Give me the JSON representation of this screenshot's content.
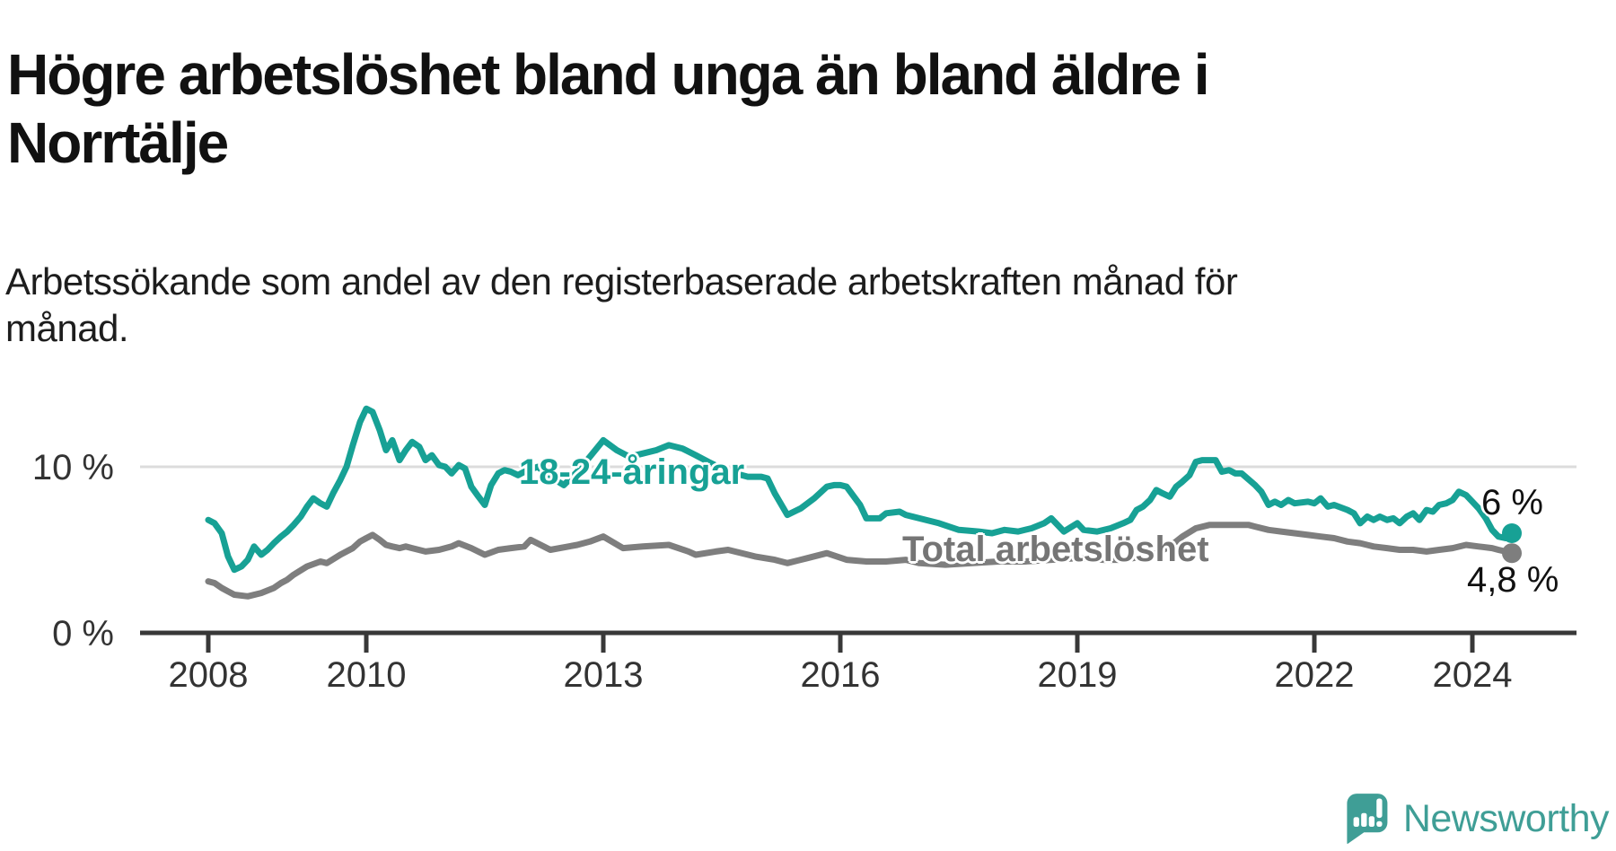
{
  "header": {
    "title": "Högre arbetslöshet bland unga än bland äldre i Norrtälje",
    "subtitle": "Arbetssökande som andel av den registerbaserade arbetskraften månad för månad."
  },
  "chart_data": {
    "type": "line",
    "unit": "%",
    "grid": "horizontal-10-only",
    "legend_position": "labels-on-lines",
    "x_ticks": [
      2008,
      2010,
      2013,
      2016,
      2019,
      2022,
      2024
    ],
    "y_ticks": [
      {
        "value": 10,
        "label": "10 %",
        "gridline": true
      },
      {
        "value": 0,
        "label": "0 %",
        "gridline": false
      }
    ],
    "x_range_years": [
      2007.1,
      2025.3
    ],
    "ylim": [
      0,
      14.5
    ],
    "colors": {
      "youth": "#17a195",
      "total": "#7e7e7e",
      "axis": "#383838",
      "gridline": "#dcdcdc",
      "tick_text": "#333333"
    },
    "series": [
      {
        "name": "18-24-åringar",
        "label": "18-24-åringar",
        "color": "#17a195",
        "end_label": "6 %",
        "end_value": 6.0,
        "points": [
          [
            2008.0,
            6.8
          ],
          [
            2008.08,
            6.6
          ],
          [
            2008.17,
            6.0
          ],
          [
            2008.25,
            4.6
          ],
          [
            2008.33,
            3.8
          ],
          [
            2008.42,
            4.0
          ],
          [
            2008.5,
            4.4
          ],
          [
            2008.58,
            5.2
          ],
          [
            2008.67,
            4.7
          ],
          [
            2008.75,
            5.0
          ],
          [
            2008.83,
            5.4
          ],
          [
            2008.92,
            5.8
          ],
          [
            2009.0,
            6.1
          ],
          [
            2009.08,
            6.5
          ],
          [
            2009.17,
            7.0
          ],
          [
            2009.25,
            7.6
          ],
          [
            2009.33,
            8.1
          ],
          [
            2009.42,
            7.8
          ],
          [
            2009.5,
            7.6
          ],
          [
            2009.58,
            8.4
          ],
          [
            2009.67,
            9.2
          ],
          [
            2009.75,
            10.0
          ],
          [
            2009.83,
            11.3
          ],
          [
            2009.92,
            12.7
          ],
          [
            2010.0,
            13.5
          ],
          [
            2010.08,
            13.3
          ],
          [
            2010.17,
            12.2
          ],
          [
            2010.25,
            11.0
          ],
          [
            2010.33,
            11.6
          ],
          [
            2010.42,
            10.4
          ],
          [
            2010.5,
            11.0
          ],
          [
            2010.58,
            11.5
          ],
          [
            2010.67,
            11.2
          ],
          [
            2010.75,
            10.4
          ],
          [
            2010.83,
            10.7
          ],
          [
            2010.92,
            10.1
          ],
          [
            2011.0,
            10.0
          ],
          [
            2011.08,
            9.6
          ],
          [
            2011.17,
            10.1
          ],
          [
            2011.25,
            9.9
          ],
          [
            2011.33,
            8.8
          ],
          [
            2011.42,
            8.2
          ],
          [
            2011.5,
            7.7
          ],
          [
            2011.58,
            8.9
          ],
          [
            2011.67,
            9.6
          ],
          [
            2011.75,
            9.8
          ],
          [
            2011.83,
            9.7
          ],
          [
            2011.92,
            9.5
          ],
          [
            2012.0,
            9.7
          ],
          [
            2012.17,
            10.0
          ],
          [
            2012.33,
            9.4
          ],
          [
            2012.5,
            8.9
          ],
          [
            2012.67,
            9.7
          ],
          [
            2012.83,
            10.6
          ],
          [
            2013.0,
            11.6
          ],
          [
            2013.17,
            11.0
          ],
          [
            2013.33,
            10.6
          ],
          [
            2013.5,
            10.8
          ],
          [
            2013.67,
            11.0
          ],
          [
            2013.83,
            11.3
          ],
          [
            2014.0,
            11.1
          ],
          [
            2014.17,
            10.7
          ],
          [
            2014.33,
            10.3
          ],
          [
            2014.5,
            9.9
          ],
          [
            2014.67,
            9.6
          ],
          [
            2014.83,
            9.4
          ],
          [
            2015.0,
            9.4
          ],
          [
            2015.08,
            9.3
          ],
          [
            2015.17,
            8.4
          ],
          [
            2015.33,
            7.1
          ],
          [
            2015.5,
            7.5
          ],
          [
            2015.67,
            8.1
          ],
          [
            2015.83,
            8.8
          ],
          [
            2015.92,
            8.9
          ],
          [
            2016.0,
            8.9
          ],
          [
            2016.08,
            8.8
          ],
          [
            2016.25,
            7.7
          ],
          [
            2016.33,
            6.9
          ],
          [
            2016.5,
            6.9
          ],
          [
            2016.58,
            7.2
          ],
          [
            2016.75,
            7.3
          ],
          [
            2016.83,
            7.1
          ],
          [
            2017.0,
            6.9
          ],
          [
            2017.25,
            6.6
          ],
          [
            2017.5,
            6.2
          ],
          [
            2017.75,
            6.1
          ],
          [
            2017.92,
            6.0
          ],
          [
            2018.08,
            6.2
          ],
          [
            2018.25,
            6.1
          ],
          [
            2018.42,
            6.3
          ],
          [
            2018.58,
            6.6
          ],
          [
            2018.67,
            6.9
          ],
          [
            2018.83,
            6.1
          ],
          [
            2019.0,
            6.6
          ],
          [
            2019.08,
            6.2
          ],
          [
            2019.25,
            6.1
          ],
          [
            2019.42,
            6.3
          ],
          [
            2019.58,
            6.6
          ],
          [
            2019.67,
            6.8
          ],
          [
            2019.75,
            7.4
          ],
          [
            2019.83,
            7.6
          ],
          [
            2019.92,
            8.0
          ],
          [
            2020.0,
            8.6
          ],
          [
            2020.08,
            8.4
          ],
          [
            2020.17,
            8.2
          ],
          [
            2020.25,
            8.8
          ],
          [
            2020.33,
            9.1
          ],
          [
            2020.42,
            9.5
          ],
          [
            2020.5,
            10.3
          ],
          [
            2020.58,
            10.4
          ],
          [
            2020.75,
            10.4
          ],
          [
            2020.83,
            9.7
          ],
          [
            2020.92,
            9.8
          ],
          [
            2021.0,
            9.6
          ],
          [
            2021.08,
            9.6
          ],
          [
            2021.25,
            8.9
          ],
          [
            2021.33,
            8.5
          ],
          [
            2021.42,
            7.7
          ],
          [
            2021.5,
            7.9
          ],
          [
            2021.58,
            7.7
          ],
          [
            2021.67,
            8.0
          ],
          [
            2021.75,
            7.8
          ],
          [
            2021.92,
            7.9
          ],
          [
            2022.0,
            7.8
          ],
          [
            2022.08,
            8.1
          ],
          [
            2022.17,
            7.6
          ],
          [
            2022.25,
            7.7
          ],
          [
            2022.42,
            7.4
          ],
          [
            2022.5,
            7.2
          ],
          [
            2022.58,
            6.6
          ],
          [
            2022.67,
            7.0
          ],
          [
            2022.75,
            6.8
          ],
          [
            2022.83,
            7.0
          ],
          [
            2022.92,
            6.8
          ],
          [
            2023.0,
            6.9
          ],
          [
            2023.08,
            6.6
          ],
          [
            2023.17,
            7.0
          ],
          [
            2023.25,
            7.2
          ],
          [
            2023.33,
            6.8
          ],
          [
            2023.42,
            7.4
          ],
          [
            2023.5,
            7.3
          ],
          [
            2023.58,
            7.7
          ],
          [
            2023.67,
            7.8
          ],
          [
            2023.75,
            8.0
          ],
          [
            2023.83,
            8.5
          ],
          [
            2023.92,
            8.3
          ],
          [
            2024.0,
            7.9
          ],
          [
            2024.08,
            7.5
          ],
          [
            2024.17,
            6.9
          ],
          [
            2024.25,
            6.2
          ],
          [
            2024.33,
            5.8
          ],
          [
            2024.42,
            5.7
          ],
          [
            2024.5,
            6.0
          ]
        ]
      },
      {
        "name": "Total arbetslöshet",
        "label": "Total arbetslöshet",
        "color": "#7e7e7e",
        "end_label": "4,8 %",
        "end_value": 4.8,
        "points": [
          [
            2008.0,
            3.1
          ],
          [
            2008.08,
            3.0
          ],
          [
            2008.17,
            2.7
          ],
          [
            2008.25,
            2.5
          ],
          [
            2008.33,
            2.3
          ],
          [
            2008.5,
            2.2
          ],
          [
            2008.67,
            2.4
          ],
          [
            2008.83,
            2.7
          ],
          [
            2008.92,
            3.0
          ],
          [
            2009.0,
            3.2
          ],
          [
            2009.08,
            3.5
          ],
          [
            2009.25,
            4.0
          ],
          [
            2009.42,
            4.3
          ],
          [
            2009.5,
            4.2
          ],
          [
            2009.67,
            4.7
          ],
          [
            2009.83,
            5.1
          ],
          [
            2009.92,
            5.5
          ],
          [
            2010.0,
            5.7
          ],
          [
            2010.08,
            5.9
          ],
          [
            2010.17,
            5.6
          ],
          [
            2010.25,
            5.3
          ],
          [
            2010.33,
            5.2
          ],
          [
            2010.42,
            5.1
          ],
          [
            2010.5,
            5.2
          ],
          [
            2010.58,
            5.1
          ],
          [
            2010.75,
            4.9
          ],
          [
            2010.92,
            5.0
          ],
          [
            2011.08,
            5.2
          ],
          [
            2011.17,
            5.4
          ],
          [
            2011.33,
            5.1
          ],
          [
            2011.5,
            4.7
          ],
          [
            2011.67,
            5.0
          ],
          [
            2011.83,
            5.1
          ],
          [
            2012.0,
            5.2
          ],
          [
            2012.08,
            5.6
          ],
          [
            2012.33,
            5.0
          ],
          [
            2012.67,
            5.3
          ],
          [
            2012.83,
            5.5
          ],
          [
            2013.0,
            5.8
          ],
          [
            2013.25,
            5.1
          ],
          [
            2013.5,
            5.2
          ],
          [
            2013.83,
            5.3
          ],
          [
            2014.08,
            4.9
          ],
          [
            2014.17,
            4.7
          ],
          [
            2014.42,
            4.9
          ],
          [
            2014.58,
            5.0
          ],
          [
            2014.92,
            4.6
          ],
          [
            2015.17,
            4.4
          ],
          [
            2015.33,
            4.2
          ],
          [
            2015.58,
            4.5
          ],
          [
            2015.83,
            4.8
          ],
          [
            2016.08,
            4.4
          ],
          [
            2016.33,
            4.3
          ],
          [
            2016.58,
            4.3
          ],
          [
            2016.83,
            4.4
          ],
          [
            2017.0,
            4.2
          ],
          [
            2017.33,
            4.1
          ],
          [
            2017.67,
            4.2
          ],
          [
            2018.0,
            4.3
          ],
          [
            2018.33,
            4.3
          ],
          [
            2018.67,
            4.4
          ],
          [
            2019.0,
            4.5
          ],
          [
            2019.33,
            4.4
          ],
          [
            2019.58,
            4.4
          ],
          [
            2019.83,
            4.6
          ],
          [
            2020.0,
            4.8
          ],
          [
            2020.17,
            5.2
          ],
          [
            2020.33,
            5.8
          ],
          [
            2020.5,
            6.3
          ],
          [
            2020.67,
            6.5
          ],
          [
            2020.83,
            6.5
          ],
          [
            2021.0,
            6.5
          ],
          [
            2021.17,
            6.5
          ],
          [
            2021.25,
            6.4
          ],
          [
            2021.42,
            6.2
          ],
          [
            2021.58,
            6.1
          ],
          [
            2021.75,
            6.0
          ],
          [
            2021.92,
            5.9
          ],
          [
            2022.08,
            5.8
          ],
          [
            2022.25,
            5.7
          ],
          [
            2022.42,
            5.5
          ],
          [
            2022.58,
            5.4
          ],
          [
            2022.75,
            5.2
          ],
          [
            2022.92,
            5.1
          ],
          [
            2023.08,
            5.0
          ],
          [
            2023.25,
            5.0
          ],
          [
            2023.42,
            4.9
          ],
          [
            2023.58,
            5.0
          ],
          [
            2023.75,
            5.1
          ],
          [
            2023.92,
            5.3
          ],
          [
            2024.08,
            5.2
          ],
          [
            2024.25,
            5.1
          ],
          [
            2024.33,
            5.0
          ],
          [
            2024.42,
            4.9
          ],
          [
            2024.5,
            4.8
          ]
        ]
      }
    ]
  },
  "logo": {
    "text": "Newsworthy",
    "color": "#3f9e96",
    "icon": "newsworthy-speech-bubble-chart-icon"
  }
}
